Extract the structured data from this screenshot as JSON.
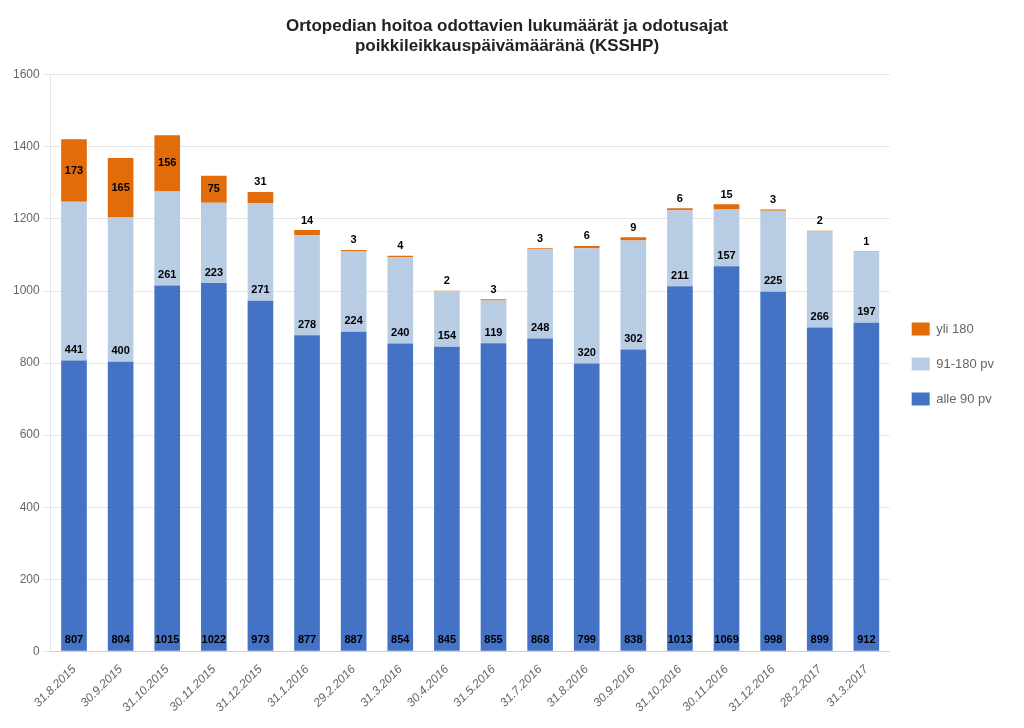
{
  "chart_data": {
    "type": "bar",
    "title": "Ortopedian hoitoa odottavien lukumäärät ja odotusajat\npoikkileikkauspäivämääränä (KSSHP)",
    "categories": [
      "31.8.2015",
      "30.9.2015",
      "31.10.2015",
      "30.11.2015",
      "31.12.2015",
      "31.1.2016",
      "29.2.2016",
      "31.3.2016",
      "30.4.2016",
      "31.5.2016",
      "31.7.2016",
      "31.8.2016",
      "30.9.2016",
      "31.10.2016",
      "30.11.2016",
      "31.12.2016",
      "28.2.2017",
      "31.3.2017"
    ],
    "series": [
      {
        "name": "alle 90 pv",
        "color": "#4472C4",
        "values": [
          807,
          804,
          1015,
          1022,
          973,
          877,
          887,
          854,
          845,
          855,
          868,
          799,
          838,
          1013,
          1069,
          998,
          899,
          912
        ]
      },
      {
        "name": "91-180 pv",
        "color": "#B8CCE4",
        "values": [
          441,
          400,
          261,
          223,
          271,
          278,
          224,
          240,
          154,
          119,
          248,
          320,
          302,
          211,
          157,
          225,
          266,
          197
        ]
      },
      {
        "name": "yli 180",
        "color": "#E26B0A",
        "values": [
          173,
          165,
          156,
          75,
          31,
          14,
          3,
          4,
          2,
          3,
          3,
          6,
          9,
          6,
          15,
          3,
          2,
          1
        ]
      }
    ],
    "stacked": true,
    "data_labels": true,
    "ylim": [
      0,
      1600
    ],
    "yticks": [
      0,
      200,
      400,
      600,
      800,
      1000,
      1200,
      1400,
      1600
    ],
    "grid": true,
    "legend": "right"
  }
}
